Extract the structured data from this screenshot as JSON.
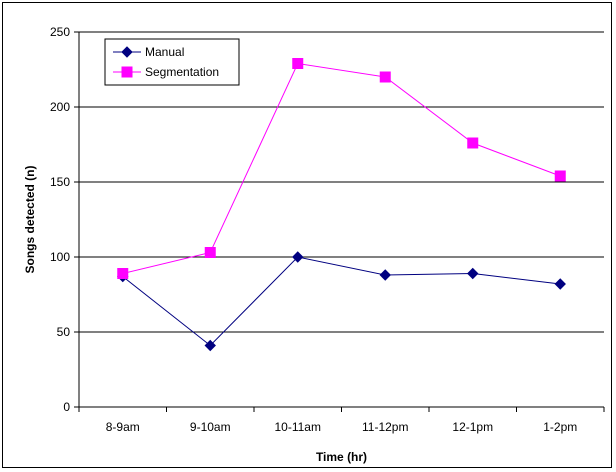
{
  "chart_data": {
    "type": "line",
    "title": "",
    "xlabel": "Time (hr)",
    "ylabel": "Songs detected (n)",
    "categories": [
      "8-9am",
      "9-10am",
      "10-11am",
      "11-12pm",
      "12-1pm",
      "1-2pm"
    ],
    "ylim": [
      0,
      250
    ],
    "yticks": [
      0,
      50,
      100,
      150,
      200,
      250
    ],
    "grid": true,
    "legend_position": "top-left",
    "series": [
      {
        "name": "Manual",
        "values": [
          87,
          41,
          100,
          88,
          89,
          82
        ],
        "color": "#000080",
        "marker": "diamond"
      },
      {
        "name": "Segmentation",
        "values": [
          89,
          103,
          229,
          220,
          176,
          154
        ],
        "color": "#FF00FF",
        "marker": "square"
      }
    ]
  }
}
